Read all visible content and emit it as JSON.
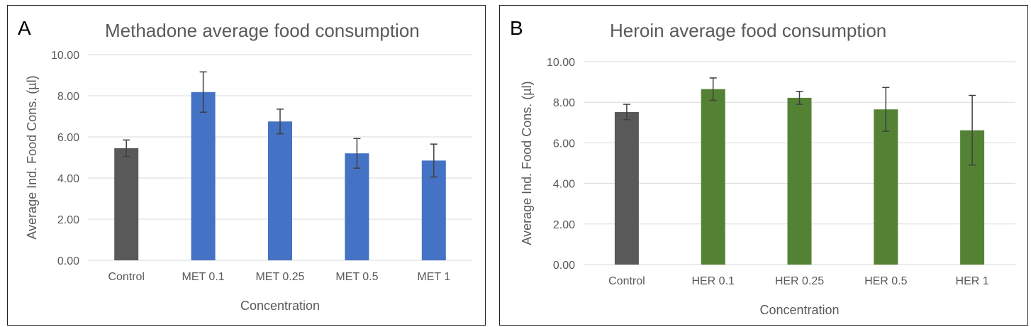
{
  "chart_data": [
    {
      "type": "bar",
      "panel_label": "A",
      "title": "Methadone average food consumption",
      "xlabel": "Concentration",
      "ylabel": "Average Ind. Food Cons. (µl)",
      "ylim": [
        0,
        10
      ],
      "yticks": [
        "0.00",
        "2.00",
        "4.00",
        "6.00",
        "8.00",
        "10.00"
      ],
      "grid": true,
      "categories": [
        "Control",
        "MET 0.1",
        "MET 0.25",
        "MET 0.5",
        "MET 1"
      ],
      "values": [
        5.45,
        8.18,
        6.75,
        5.2,
        4.85
      ],
      "errors": [
        0.4,
        0.98,
        0.6,
        0.72,
        0.8
      ],
      "colors": [
        "#595959",
        "#4472C4",
        "#4472C4",
        "#4472C4",
        "#4472C4"
      ]
    },
    {
      "type": "bar",
      "panel_label": "B",
      "title": "Heroin average food consumption",
      "xlabel": "Concentration",
      "ylabel": "Average Ind. Food Cons. (µl)",
      "ylim": [
        0,
        10
      ],
      "yticks": [
        "0.00",
        "2.00",
        "4.00",
        "6.00",
        "8.00",
        "10.00"
      ],
      "grid": true,
      "categories": [
        "Control",
        "HER 0.1",
        "HER 0.25",
        "HER 0.5",
        "HER 1"
      ],
      "values": [
        7.52,
        8.65,
        8.22,
        7.65,
        6.62
      ],
      "errors": [
        0.38,
        0.55,
        0.32,
        1.08,
        1.72
      ],
      "colors": [
        "#595959",
        "#548235",
        "#548235",
        "#548235",
        "#548235"
      ]
    }
  ]
}
